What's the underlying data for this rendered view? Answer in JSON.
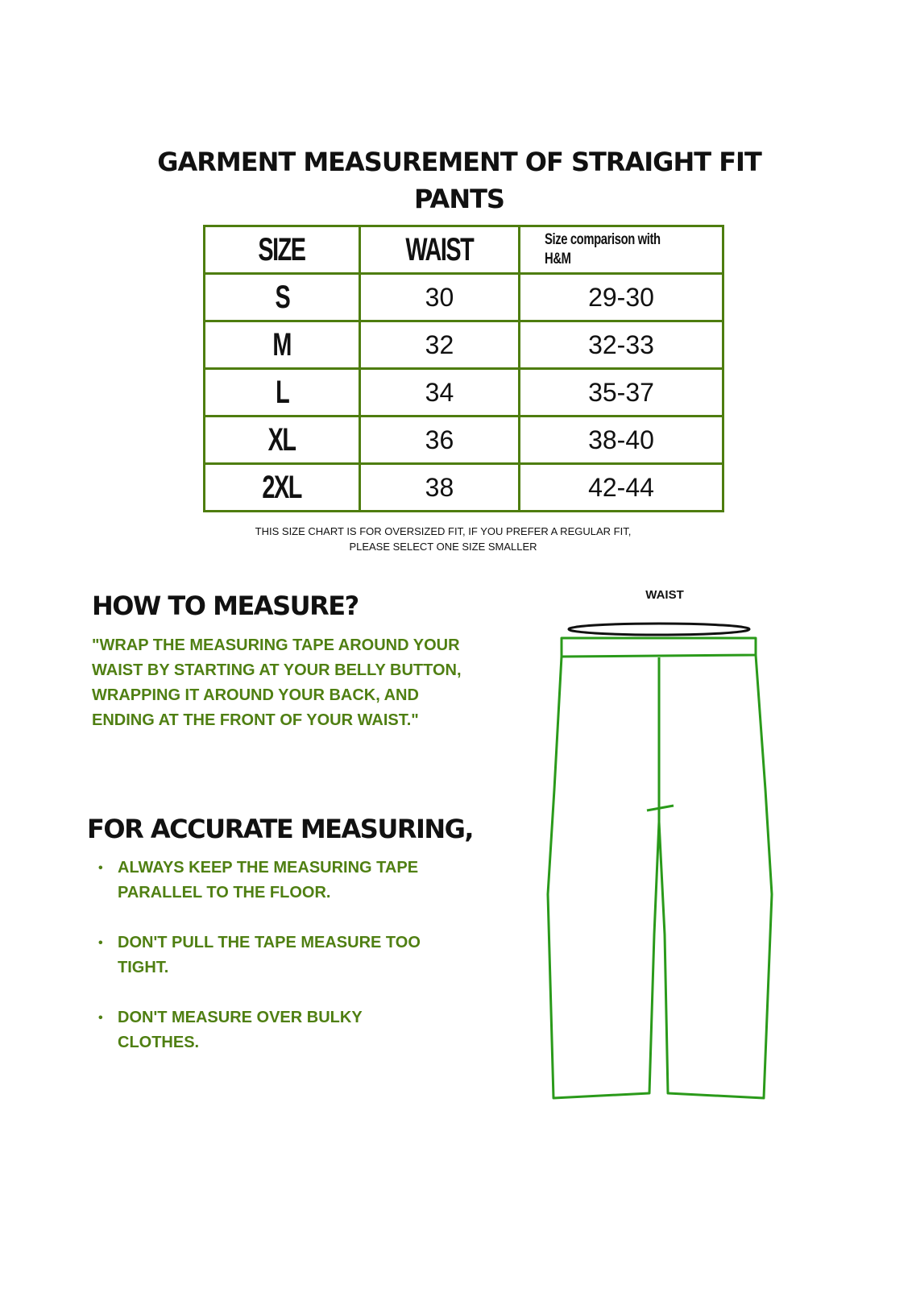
{
  "title": "GARMENT MEASUREMENT OF  STRAIGHT FIT PANTS",
  "table": {
    "headers": [
      "SIZE",
      "WAIST",
      "Size comparison with H&M"
    ],
    "rows": [
      {
        "size": "S",
        "waist": "30",
        "hm": "29-30"
      },
      {
        "size": "M",
        "waist": "32",
        "hm": "32-33"
      },
      {
        "size": "L",
        "waist": "34",
        "hm": "35-37"
      },
      {
        "size": "XL",
        "waist": "36",
        "hm": "38-40"
      },
      {
        "size": "2XL",
        "waist": "38",
        "hm": "42-44"
      }
    ]
  },
  "note_line1": "THIS SIZE CHART IS FOR OVERSIZED FIT, IF YOU PREFER A REGULAR FIT,",
  "note_line2": "PLEASE SELECT ONE SIZE SMALLER",
  "how_to_measure": {
    "heading": "HOW TO MEASURE?",
    "text": "\"WRAP THE MEASURING TAPE AROUND YOUR WAIST BY STARTING AT YOUR BELLY BUTTON, WRAPPING IT AROUND YOUR BACK, AND ENDING AT THE FRONT OF YOUR WAIST.\""
  },
  "accurate": {
    "heading": "FOR ACCURATE  MEASURING,",
    "tips": [
      "ALWAYS KEEP THE MEASURING TAPE PARALLEL TO THE FLOOR.",
      "DON'T PULL THE TAPE MEASURE TOO TIGHT.",
      "DON'T MEASURE OVER BULKY CLOTHES."
    ]
  },
  "diagram": {
    "waist_label": "WAIST"
  },
  "colors": {
    "accent_green": "#4f7f12",
    "drawing_green": "#2a9a1a"
  }
}
